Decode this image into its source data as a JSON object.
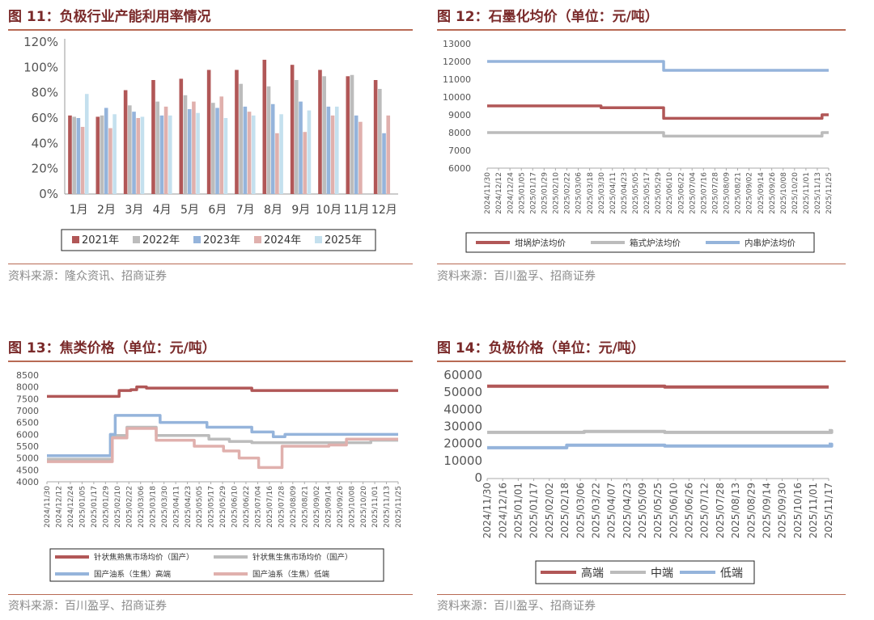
{
  "colors": {
    "title": "#7a2a2a",
    "rule": "#b86a54",
    "dark_red": "#b15757",
    "gray": "#bcbcbc",
    "blue": "#95b4db",
    "pink": "#e0b0ad",
    "light_blue": "#c4e0ee"
  },
  "panels": [
    {
      "title": "图 11：负极行业产能利用率情况",
      "source": "资料来源：隆众资讯、招商证券",
      "chart_data": {
        "type": "bar",
        "categories": [
          "1月",
          "2月",
          "3月",
          "4月",
          "5月",
          "6月",
          "7月",
          "8月",
          "9月",
          "10月",
          "11月",
          "12月"
        ],
        "series": [
          {
            "name": "2021年",
            "color": "#b15757",
            "values": [
              62,
              61,
              82,
              90,
              91,
              98,
              98,
              106,
              102,
              98,
              93,
              90
            ]
          },
          {
            "name": "2022年",
            "color": "#bcbcbc",
            "values": [
              61,
              62,
              70,
              73,
              78,
              72,
              87,
              85,
              90,
              93,
              94,
              83
            ]
          },
          {
            "name": "2023年",
            "color": "#95b4db",
            "values": [
              60,
              68,
              65,
              62,
              67,
              68,
              69,
              71,
              73,
              69,
              62,
              48
            ]
          },
          {
            "name": "2024年",
            "color": "#e0b0ad",
            "values": [
              53,
              52,
              60,
              69,
              73,
              77,
              65,
              48,
              49,
              62,
              57,
              62
            ]
          },
          {
            "name": "2025年",
            "color": "#c4e0ee",
            "values": [
              79,
              63,
              61,
              62,
              64,
              60,
              62,
              63,
              66,
              69,
              null,
              null
            ]
          }
        ],
        "yticks": [
          "0%",
          "20%",
          "40%",
          "60%",
          "80%",
          "100%",
          "120%"
        ],
        "ylim": [
          0,
          120
        ],
        "legend": "bottom",
        "grid": false
      }
    },
    {
      "title": "图 12：石墨化均价（单位：元/吨）",
      "source": "资料来源：百川盈孚、招商证券",
      "chart_data": {
        "type": "line",
        "x": [
          "2024/11/30",
          "2024/12/12",
          "2024/12/24",
          "2025/01/05",
          "2025/01/17",
          "2025/01/29",
          "2025/02/10",
          "2025/02/22",
          "2025/03/06",
          "2025/03/18",
          "2025/03/30",
          "2025/04/11",
          "2025/04/23",
          "2025/05/05",
          "2025/05/17",
          "2025/05/29",
          "2025/06/10",
          "2025/06/22",
          "2025/07/04",
          "2025/07/16",
          "2025/07/28",
          "2025/08/09",
          "2025/08/21",
          "2025/09/02",
          "2025/09/14",
          "2025/09/26",
          "2025/10/08",
          "2025/10/20",
          "2025/11/01",
          "2025/11/13",
          "2025/11/25"
        ],
        "series": [
          {
            "name": "坩埚炉法均价",
            "color": "#b15757",
            "steps": [
              [
                "2024/11/30",
                9500
              ],
              [
                "2025/03/30",
                9400
              ],
              [
                "2025/06/04",
                8800
              ],
              [
                "2025/11/18",
                9000
              ]
            ]
          },
          {
            "name": "箱式炉法均价",
            "color": "#bcbcbc",
            "steps": [
              [
                "2024/11/30",
                8000
              ],
              [
                "2025/06/04",
                7800
              ],
              [
                "2025/11/18",
                8000
              ]
            ]
          },
          {
            "name": "内串炉法均价",
            "color": "#95b4db",
            "steps": [
              [
                "2024/11/30",
                12000
              ],
              [
                "2025/06/04",
                11500
              ]
            ]
          }
        ],
        "yticks": [
          "6000",
          "7000",
          "8000",
          "9000",
          "10000",
          "11000",
          "12000",
          "13000"
        ],
        "ylim": [
          6000,
          13000
        ],
        "legend": "bottom",
        "grid": false
      }
    },
    {
      "title": "图 13：焦类价格（单位：元/吨）",
      "source": "资料来源：百川盈孚、招商证券",
      "chart_data": {
        "type": "line",
        "x": [
          "2024/11/30",
          "2024/12/12",
          "2024/12/24",
          "2025/01/05",
          "2025/01/17",
          "2025/01/29",
          "2025/02/10",
          "2025/02/22",
          "2025/03/06",
          "2025/03/18",
          "2025/03/30",
          "2025/04/11",
          "2025/04/23",
          "2025/05/05",
          "2025/05/17",
          "2025/05/29",
          "2025/06/10",
          "2025/06/22",
          "2025/07/04",
          "2025/07/16",
          "2025/07/28",
          "2025/08/09",
          "2025/08/21",
          "2025/09/02",
          "2025/09/14",
          "2025/09/26",
          "2025/10/08",
          "2025/10/20",
          "2025/11/01",
          "2025/11/13",
          "2025/11/25"
        ],
        "series": [
          {
            "name": "针状焦熟焦市场均价（国产）",
            "color": "#b15757",
            "steps": [
              [
                "2024/11/30",
                7600
              ],
              [
                "2025/02/12",
                7850
              ],
              [
                "2025/02/24",
                7880
              ],
              [
                "2025/03/02",
                8000
              ],
              [
                "2025/03/12",
                7950
              ],
              [
                "2025/06/28",
                7850
              ]
            ]
          },
          {
            "name": "针状焦生焦市场均价（国产）",
            "color": "#bcbcbc",
            "steps": [
              [
                "2024/11/30",
                4950
              ],
              [
                "2025/02/05",
                5950
              ],
              [
                "2025/02/20",
                6300
              ],
              [
                "2025/03/22",
                5950
              ],
              [
                "2025/05/15",
                5800
              ],
              [
                "2025/06/05",
                5700
              ],
              [
                "2025/06/28",
                5650
              ],
              [
                "2025/10/28",
                5750
              ]
            ]
          },
          {
            "name": "国产油系（生焦）高端",
            "color": "#95b4db",
            "steps": [
              [
                "2024/11/30",
                5100
              ],
              [
                "2025/02/03",
                6000
              ],
              [
                "2025/02/08",
                6800
              ],
              [
                "2025/03/26",
                6500
              ],
              [
                "2025/05/13",
                6300
              ],
              [
                "2025/06/28",
                6100
              ],
              [
                "2025/07/20",
                5900
              ],
              [
                "2025/08/01",
                6000
              ]
            ]
          },
          {
            "name": "国产油系（生焦）低端",
            "color": "#e0b0ad",
            "steps": [
              [
                "2024/11/30",
                4850
              ],
              [
                "2025/02/05",
                5850
              ],
              [
                "2025/02/20",
                6250
              ],
              [
                "2025/03/22",
                5750
              ],
              [
                "2025/04/30",
                5500
              ],
              [
                "2025/05/30",
                5300
              ],
              [
                "2025/06/15",
                5000
              ],
              [
                "2025/07/05",
                4600
              ],
              [
                "2025/07/29",
                5500
              ],
              [
                "2025/09/15",
                5550
              ],
              [
                "2025/10/03",
                5800
              ]
            ]
          }
        ],
        "yticks": [
          "4000",
          "4500",
          "5000",
          "5500",
          "6000",
          "6500",
          "7000",
          "7500",
          "8000",
          "8500"
        ],
        "ylim": [
          4000,
          8500
        ],
        "legend": "bottom",
        "grid": false
      }
    },
    {
      "title": "图 14：负极价格（单位：元/吨）",
      "source": "资料来源：百川盈孚、招商证券",
      "chart_data": {
        "type": "line",
        "x": [
          "2024/11/30",
          "2024/12/16",
          "2025/01/01",
          "2025/01/17",
          "2025/02/02",
          "2025/02/18",
          "2025/03/06",
          "2025/03/22",
          "2025/04/07",
          "2025/04/23",
          "2025/05/09",
          "2025/05/25",
          "2025/06/10",
          "2025/06/26",
          "2025/07/12",
          "2025/07/28",
          "2025/08/13",
          "2025/08/29",
          "2025/09/14",
          "2025/09/30",
          "2025/10/16",
          "2025/11/01",
          "2025/11/17"
        ],
        "series": [
          {
            "name": "高端",
            "color": "#b15757",
            "steps": [
              [
                "2024/11/30",
                54000
              ],
              [
                "2025/06/01",
                53500
              ]
            ]
          },
          {
            "name": "中端",
            "color": "#bcbcbc",
            "steps": [
              [
                "2024/11/30",
                27000
              ],
              [
                "2025/03/10",
                27500
              ],
              [
                "2025/06/01",
                27000
              ],
              [
                "2025/11/20",
                28000
              ]
            ]
          },
          {
            "name": "低端",
            "color": "#95b4db",
            "steps": [
              [
                "2024/11/30",
                18000
              ],
              [
                "2025/02/20",
                19500
              ],
              [
                "2025/06/01",
                19000
              ],
              [
                "2025/11/20",
                20000
              ]
            ]
          }
        ],
        "yticks": [
          "0",
          "10000",
          "20000",
          "30000",
          "40000",
          "50000",
          "60000"
        ],
        "ylim": [
          0,
          60000
        ],
        "legend": "bottom",
        "grid": false
      }
    }
  ]
}
